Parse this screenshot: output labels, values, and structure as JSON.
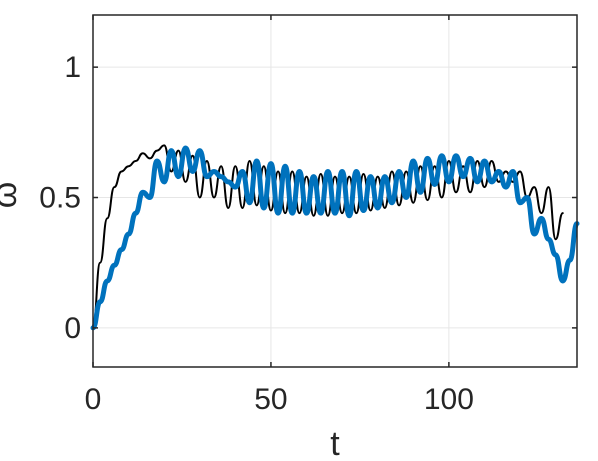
{
  "chart_data": {
    "type": "line",
    "xlabel": "t",
    "ylabel": "ω",
    "xlim": [
      0,
      136
    ],
    "ylim": [
      -0.15,
      1.2
    ],
    "x_ticks": [
      0,
      50,
      100
    ],
    "y_ticks": [
      0,
      0.5,
      1
    ],
    "x_tick_labels": [
      "0",
      "50",
      "100"
    ],
    "y_tick_labels": [
      "0",
      "0.5",
      "1"
    ],
    "grid": true,
    "series": [
      {
        "color": "#000000",
        "line_width": 2,
        "x": [
          0,
          2,
          4,
          6,
          8,
          10,
          12,
          14,
          16,
          18,
          20,
          22,
          24,
          26,
          28,
          30,
          32,
          34,
          36,
          38,
          40,
          42,
          44,
          46,
          48,
          50,
          52,
          54,
          56,
          58,
          60,
          62,
          64,
          66,
          68,
          70,
          72,
          74,
          76,
          78,
          80,
          82,
          84,
          86,
          88,
          90,
          92,
          94,
          96,
          98,
          100,
          102,
          104,
          106,
          108,
          110,
          112,
          114,
          116,
          118,
          120,
          122,
          124,
          126,
          128,
          130,
          132
        ],
        "y": [
          0.0,
          0.25,
          0.42,
          0.54,
          0.6,
          0.62,
          0.64,
          0.67,
          0.65,
          0.68,
          0.7,
          0.6,
          0.68,
          0.56,
          0.66,
          0.5,
          0.64,
          0.5,
          0.62,
          0.46,
          0.62,
          0.46,
          0.64,
          0.47,
          0.62,
          0.45,
          0.6,
          0.44,
          0.6,
          0.44,
          0.58,
          0.43,
          0.59,
          0.43,
          0.58,
          0.44,
          0.58,
          0.44,
          0.59,
          0.45,
          0.58,
          0.46,
          0.6,
          0.47,
          0.6,
          0.48,
          0.62,
          0.49,
          0.62,
          0.5,
          0.64,
          0.52,
          0.62,
          0.52,
          0.64,
          0.54,
          0.64,
          0.56,
          0.6,
          0.56,
          0.6,
          0.5,
          0.54,
          0.44,
          0.54,
          0.34,
          0.44
        ]
      },
      {
        "color": "#0072bd",
        "line_width": 5,
        "x": [
          0,
          2,
          4,
          6,
          8,
          10,
          12,
          14,
          16,
          18,
          20,
          22,
          24,
          26,
          28,
          30,
          32,
          34,
          36,
          38,
          40,
          42,
          44,
          46,
          48,
          50,
          52,
          54,
          56,
          58,
          60,
          62,
          64,
          66,
          68,
          70,
          72,
          74,
          76,
          78,
          80,
          82,
          84,
          86,
          88,
          90,
          92,
          94,
          96,
          98,
          100,
          102,
          104,
          106,
          108,
          110,
          112,
          114,
          116,
          118,
          120,
          122,
          124,
          126,
          128,
          130,
          132,
          134,
          136
        ],
        "y": [
          0.0,
          0.1,
          0.18,
          0.24,
          0.3,
          0.36,
          0.44,
          0.52,
          0.5,
          0.64,
          0.56,
          0.68,
          0.58,
          0.69,
          0.6,
          0.68,
          0.58,
          0.6,
          0.58,
          0.56,
          0.54,
          0.6,
          0.48,
          0.64,
          0.46,
          0.63,
          0.44,
          0.62,
          0.44,
          0.6,
          0.44,
          0.58,
          0.44,
          0.6,
          0.44,
          0.6,
          0.43,
          0.6,
          0.45,
          0.58,
          0.46,
          0.58,
          0.48,
          0.6,
          0.5,
          0.64,
          0.52,
          0.65,
          0.55,
          0.66,
          0.56,
          0.66,
          0.58,
          0.65,
          0.56,
          0.64,
          0.56,
          0.6,
          0.54,
          0.6,
          0.48,
          0.5,
          0.36,
          0.42,
          0.34,
          0.28,
          0.18,
          0.26,
          0.4
        ]
      }
    ]
  }
}
